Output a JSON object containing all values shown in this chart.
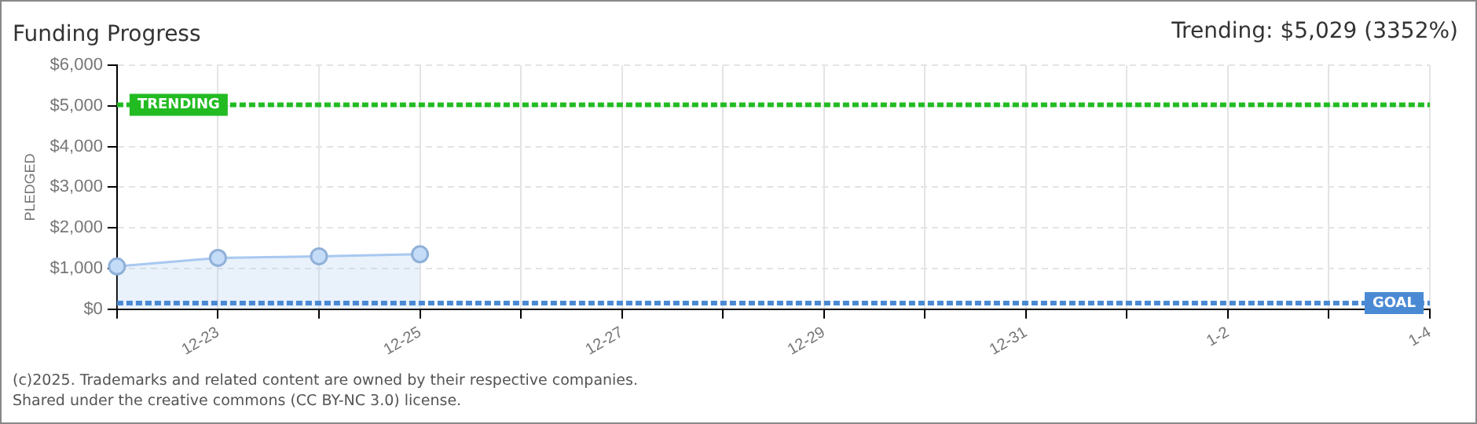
{
  "chart_data": {
    "type": "area",
    "title": "Funding Progress",
    "subtitle": "Trending: $5,029 (3352%)",
    "ylabel": "PLEDGED",
    "categories": [
      null,
      "12-23",
      null,
      "12-25",
      null,
      "12-27",
      null,
      "12-29",
      null,
      "12-31",
      null,
      "1-2",
      null,
      "1-4"
    ],
    "series": [
      {
        "color": "#a8c8f0",
        "values": [
          1050,
          1260,
          1300,
          1350,
          null,
          null,
          null,
          null,
          null,
          null,
          null,
          null,
          null,
          null
        ]
      }
    ],
    "ylim": [
      0,
      6000
    ],
    "yticks": [
      {
        "value": 0,
        "label": "$0"
      },
      {
        "value": 1000,
        "label": "$1,000"
      },
      {
        "value": 2000,
        "label": "$2,000"
      },
      {
        "value": 3000,
        "label": "$3,000"
      },
      {
        "value": 4000,
        "label": "$4,000"
      },
      {
        "value": 5000,
        "label": "$5,000"
      },
      {
        "value": 6000,
        "label": "$6,000"
      }
    ],
    "grid": true,
    "marker": "circle",
    "legend": false,
    "ref_lines": [
      {
        "axis": "y",
        "value": 5029,
        "label": "TRENDING",
        "color": "#22bb22",
        "line_style": "dashed"
      },
      {
        "axis": "y",
        "value": 150,
        "label": "GOAL",
        "color": "#4a8ad4",
        "line_style": "dashed"
      }
    ],
    "annotations": [
      "(c)2025. Trademarks and related content are owned by their respective companies.",
      "Shared under the creative commons (CC BY-NC 3.0) license."
    ]
  }
}
